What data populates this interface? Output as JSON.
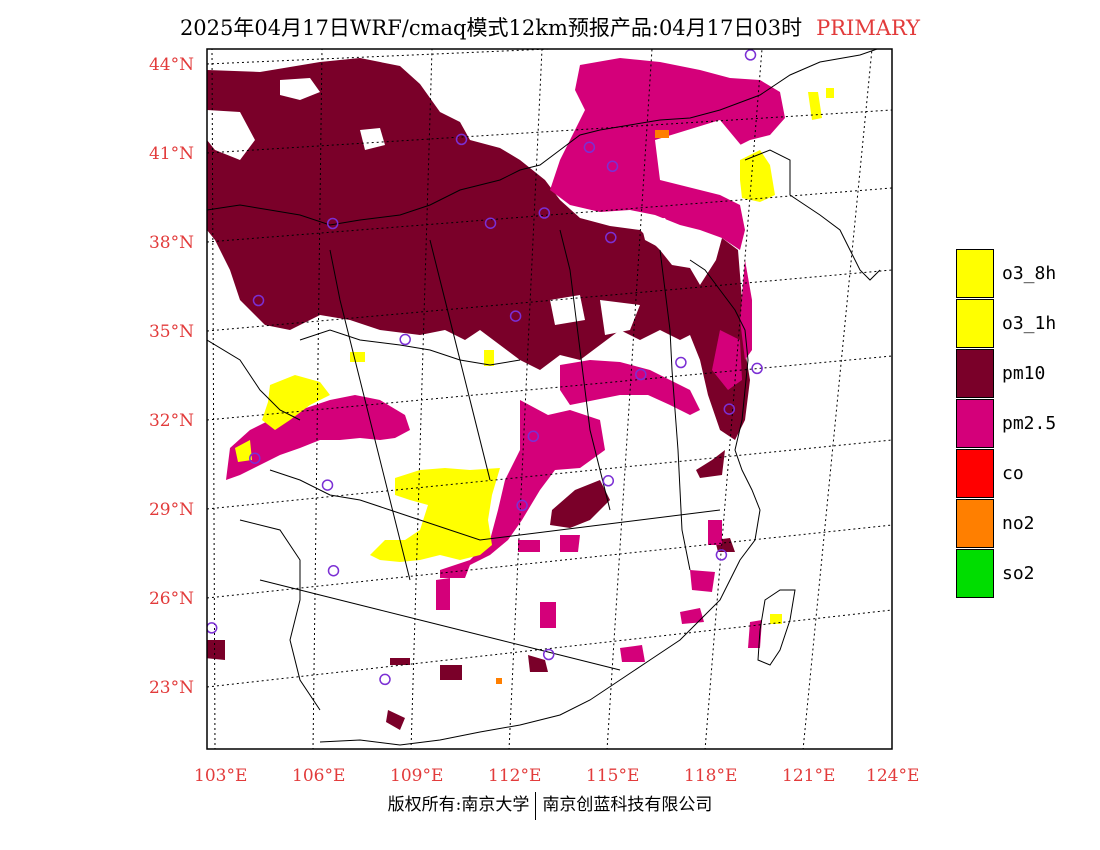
{
  "header": {
    "title": "2025年04月17日WRF/cmaq模式12km预报产品:04月17日03时",
    "tag": "PRIMARY",
    "tag_color": "#e23b3b"
  },
  "map": {
    "lat_labels": [
      "44°N",
      "41°N",
      "38°N",
      "35°N",
      "32°N",
      "29°N",
      "26°N",
      "23°N"
    ],
    "lon_labels": [
      "103°E",
      "106°E",
      "109°E",
      "112°E",
      "115°E",
      "118°E",
      "121°E",
      "124°E"
    ],
    "label_color": "#e23b3b",
    "stations_color": "#7b2fd4",
    "stations": [
      {
        "lon": 118.8,
        "lat": 42.9
      },
      {
        "lon": 110.3,
        "lat": 40.8
      },
      {
        "lon": 114.1,
        "lat": 40.2
      },
      {
        "lon": 114.8,
        "lat": 39.5
      },
      {
        "lon": 106.5,
        "lat": 38.3
      },
      {
        "lon": 111.2,
        "lat": 37.9
      },
      {
        "lon": 112.8,
        "lat": 38.1
      },
      {
        "lon": 114.8,
        "lat": 37.1
      },
      {
        "lon": 104.3,
        "lat": 35.9
      },
      {
        "lon": 112.0,
        "lat": 34.7
      },
      {
        "lon": 108.7,
        "lat": 34.2
      },
      {
        "lon": 117.0,
        "lat": 32.7
      },
      {
        "lon": 115.8,
        "lat": 32.4
      },
      {
        "lon": 119.3,
        "lat": 32.3
      },
      {
        "lon": 118.5,
        "lat": 31.0
      },
      {
        "lon": 104.2,
        "lat": 30.6
      },
      {
        "lon": 112.6,
        "lat": 30.6
      },
      {
        "lon": 106.4,
        "lat": 29.5
      },
      {
        "lon": 114.9,
        "lat": 28.9
      },
      {
        "lon": 112.3,
        "lat": 28.3
      },
      {
        "lon": 106.6,
        "lat": 26.6
      },
      {
        "lon": 118.4,
        "lat": 26.1
      },
      {
        "lon": 102.9,
        "lat": 25.0
      },
      {
        "lon": 108.2,
        "lat": 22.8
      },
      {
        "lon": 113.2,
        "lat": 23.2
      }
    ]
  },
  "legend": {
    "items": [
      {
        "label": "o3_8h",
        "color": "#ffff00"
      },
      {
        "label": "o3_1h",
        "color": "#ffff00"
      },
      {
        "label": "pm10",
        "color": "#7a0029"
      },
      {
        "label": "pm2.5",
        "color": "#d4007a"
      },
      {
        "label": "co",
        "color": "#ff0000"
      },
      {
        "label": "no2",
        "color": "#ff7f00"
      },
      {
        "label": "so2",
        "color": "#00dd00"
      }
    ]
  },
  "footer": {
    "copyright_left": "版权所有:南京大学",
    "copyright_right": "南京创蓝科技有限公司"
  }
}
